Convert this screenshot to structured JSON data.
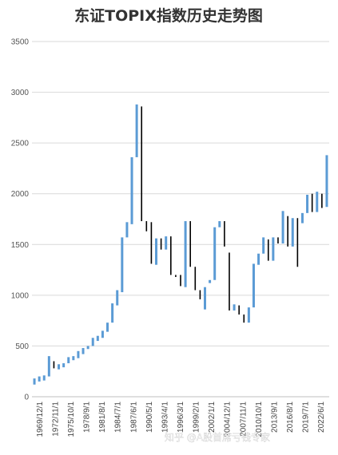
{
  "chart_data": {
    "type": "candlestick",
    "title": "东证TOPIX指数历史走势图",
    "xlabel": "",
    "ylabel": "",
    "ylim": [
      0,
      3500
    ],
    "yticks": [
      0,
      500,
      1000,
      1500,
      2000,
      2500,
      3000,
      3500
    ],
    "grid": true,
    "legend": "none",
    "colors": {
      "up": "#5b9bd5",
      "down": "#000000",
      "grid": "#d9d9d9",
      "text": "#333333"
    },
    "x_tick_labels": [
      "1969/12/1",
      "1972/11/1",
      "1975/10/1",
      "1978/9/1",
      "1981/8/1",
      "1984/7/1",
      "1987/6/1",
      "1990/5/1",
      "1993/4/1",
      "1996/3/1",
      "1999/2/1",
      "2002/1/1",
      "2004/12/1",
      "2007/11/1",
      "2010/10/1",
      "2013/9/1",
      "2016/8/1",
      "2019/7/1",
      "2022/6/1"
    ],
    "candles": [
      {
        "open": 120,
        "close": 180
      },
      {
        "open": 150,
        "close": 200
      },
      {
        "open": 160,
        "close": 210
      },
      {
        "open": 200,
        "close": 400
      },
      {
        "open": 350,
        "close": 280
      },
      {
        "open": 270,
        "close": 320
      },
      {
        "open": 290,
        "close": 330
      },
      {
        "open": 330,
        "close": 390
      },
      {
        "open": 360,
        "close": 400
      },
      {
        "open": 380,
        "close": 450
      },
      {
        "open": 420,
        "close": 480
      },
      {
        "open": 470,
        "close": 500
      },
      {
        "open": 500,
        "close": 580
      },
      {
        "open": 550,
        "close": 600
      },
      {
        "open": 580,
        "close": 650
      },
      {
        "open": 640,
        "close": 730
      },
      {
        "open": 730,
        "close": 920
      },
      {
        "open": 900,
        "close": 1050
      },
      {
        "open": 1030,
        "close": 1570
      },
      {
        "open": 1570,
        "close": 1720
      },
      {
        "open": 1700,
        "close": 2360
      },
      {
        "open": 2360,
        "close": 2880
      },
      {
        "open": 2860,
        "close": 1730
      },
      {
        "open": 1730,
        "close": 1630
      },
      {
        "open": 1720,
        "close": 1310
      },
      {
        "open": 1300,
        "close": 1560
      },
      {
        "open": 1560,
        "close": 1450
      },
      {
        "open": 1450,
        "close": 1580
      },
      {
        "open": 1580,
        "close": 1200
      },
      {
        "open": 1200,
        "close": 1180
      },
      {
        "open": 1200,
        "close": 1090
      },
      {
        "open": 1080,
        "close": 1730
      },
      {
        "open": 1730,
        "close": 1280
      },
      {
        "open": 1280,
        "close": 1050
      },
      {
        "open": 1050,
        "close": 960
      },
      {
        "open": 860,
        "close": 1080
      },
      {
        "open": 1120,
        "close": 1150
      },
      {
        "open": 1150,
        "close": 1670
      },
      {
        "open": 1670,
        "close": 1730
      },
      {
        "open": 1730,
        "close": 1480
      },
      {
        "open": 1420,
        "close": 850
      },
      {
        "open": 850,
        "close": 910
      },
      {
        "open": 900,
        "close": 810
      },
      {
        "open": 810,
        "close": 730
      },
      {
        "open": 730,
        "close": 880
      },
      {
        "open": 880,
        "close": 1310
      },
      {
        "open": 1300,
        "close": 1410
      },
      {
        "open": 1410,
        "close": 1570
      },
      {
        "open": 1550,
        "close": 1340
      },
      {
        "open": 1340,
        "close": 1570
      },
      {
        "open": 1570,
        "close": 1510
      },
      {
        "open": 1510,
        "close": 1830
      },
      {
        "open": 1780,
        "close": 1480
      },
      {
        "open": 1480,
        "close": 1760
      },
      {
        "open": 1760,
        "close": 1280
      },
      {
        "open": 1710,
        "close": 1810
      },
      {
        "open": 1810,
        "close": 1990
      },
      {
        "open": 2000,
        "close": 1820
      },
      {
        "open": 1820,
        "close": 2020
      },
      {
        "open": 2000,
        "close": 1860
      },
      {
        "open": 1870,
        "close": 2380
      }
    ]
  },
  "watermark": "知乎 @A股首席亏钱专家"
}
